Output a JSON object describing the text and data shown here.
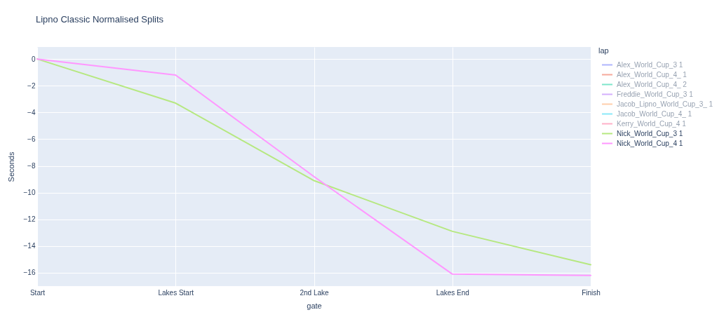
{
  "chart_data": {
    "type": "line",
    "title": "Lipno Classic Normalised Splits",
    "xlabel": "gate",
    "ylabel": "Seconds",
    "legend_title": "lap",
    "categories": [
      "Start",
      "Lakes Start",
      "2nd Lake",
      "Lakes End",
      "Finish"
    ],
    "series": [
      {
        "name": "Alex_World_Cup_3 1",
        "color": "#636efa",
        "values": [
          null,
          null,
          null,
          null,
          null
        ]
      },
      {
        "name": "Alex_World_Cup_4_ 1",
        "color": "#ef553b",
        "values": [
          null,
          null,
          null,
          null,
          null
        ]
      },
      {
        "name": "Alex_World_Cup_4_ 2",
        "color": "#00cc96",
        "values": [
          null,
          null,
          null,
          null,
          null
        ]
      },
      {
        "name": "Freddie_World_Cup_3 1",
        "color": "#ab63fa",
        "values": [
          null,
          null,
          null,
          null,
          null
        ]
      },
      {
        "name": "Jacob_Lipno_World_Cup_3_ 1",
        "color": "#ffa15a",
        "values": [
          null,
          null,
          null,
          null,
          null
        ]
      },
      {
        "name": "Jacob_World_Cup_4_ 1",
        "color": "#19d3f3",
        "values": [
          null,
          null,
          null,
          null,
          null
        ]
      },
      {
        "name": "Kerry_World_Cup_4 1",
        "color": "#ff6692",
        "values": [
          null,
          null,
          null,
          null,
          null
        ]
      },
      {
        "name": "Nick_World_Cup_3 1",
        "color": "#b6e880",
        "values": [
          0,
          -3.3,
          -9.1,
          -12.9,
          -15.4
        ]
      },
      {
        "name": "Nick_World_Cup_4 1",
        "color": "#ff97ff",
        "values": [
          0,
          -1.2,
          -8.8,
          -16.1,
          -16.2
        ]
      }
    ],
    "ylim": [
      -17.0,
      0.9
    ],
    "yticks": [
      0,
      -2,
      -4,
      -6,
      -8,
      -10,
      -12,
      -14,
      -16
    ],
    "grid": true,
    "legend": "top right",
    "line_style": "solid"
  }
}
